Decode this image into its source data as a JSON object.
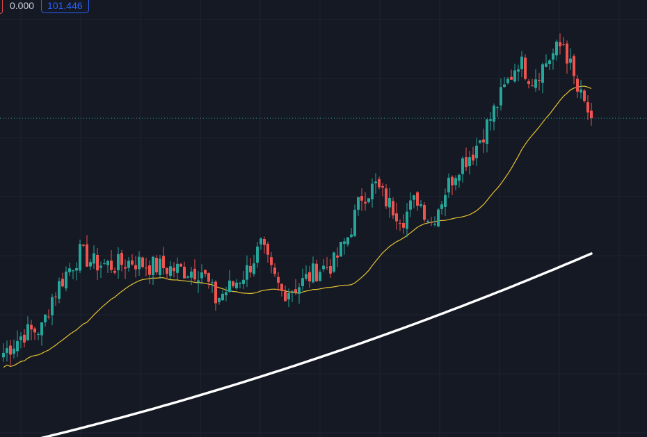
{
  "legend": {
    "value_a": "0.000",
    "value_b": "101.446"
  },
  "colors": {
    "background": "#151924",
    "grid": "#1f2432",
    "up": "#26a69a",
    "down": "#ef5350",
    "ma_fast": "#e5c232",
    "ma_slow": "#ffffff",
    "price_line": "#26a69a",
    "legend_accent": "#2962ff"
  },
  "chart_data": {
    "type": "candlestick",
    "grid": true,
    "overlays": [
      "ma_fast",
      "ma_slow",
      "last_price_line"
    ],
    "candle_count": 170,
    "anchors": [
      {
        "i": 0,
        "c": 98.2
      },
      {
        "i": 6,
        "c": 99.0
      },
      {
        "i": 11,
        "c": 99.2
      },
      {
        "i": 14,
        "c": 100.5
      },
      {
        "i": 18,
        "c": 101.5
      },
      {
        "i": 22,
        "c": 102.3
      },
      {
        "i": 26,
        "c": 101.9
      },
      {
        "i": 32,
        "c": 101.8
      },
      {
        "i": 37,
        "c": 102.0
      },
      {
        "i": 42,
        "c": 101.8
      },
      {
        "i": 47,
        "c": 101.7
      },
      {
        "i": 52,
        "c": 101.6
      },
      {
        "i": 57,
        "c": 101.6
      },
      {
        "i": 61,
        "c": 100.4
      },
      {
        "i": 66,
        "c": 101.0
      },
      {
        "i": 70,
        "c": 101.6
      },
      {
        "i": 74,
        "c": 102.6
      },
      {
        "i": 77,
        "c": 101.5
      },
      {
        "i": 80,
        "c": 100.7
      },
      {
        "i": 85,
        "c": 101.0
      },
      {
        "i": 90,
        "c": 101.6
      },
      {
        "i": 95,
        "c": 101.9
      },
      {
        "i": 99,
        "c": 103.0
      },
      {
        "i": 103,
        "c": 104.7
      },
      {
        "i": 107,
        "c": 105.1
      },
      {
        "i": 111,
        "c": 104.3
      },
      {
        "i": 115,
        "c": 103.8
      },
      {
        "i": 119,
        "c": 104.6
      },
      {
        "i": 123,
        "c": 103.6
      },
      {
        "i": 127,
        "c": 104.9
      },
      {
        "i": 131,
        "c": 106.0
      },
      {
        "i": 135,
        "c": 106.5
      },
      {
        "i": 140,
        "c": 107.9
      },
      {
        "i": 144,
        "c": 109.1
      },
      {
        "i": 148,
        "c": 110.3
      },
      {
        "i": 152,
        "c": 109.5
      },
      {
        "i": 157,
        "c": 110.4
      },
      {
        "i": 161,
        "c": 111.0
      },
      {
        "i": 165,
        "c": 109.0
      },
      {
        "i": 169,
        "c": 107.9
      }
    ],
    "ylim": [
      95.0,
      112.5
    ],
    "last_price": 107.9
  }
}
